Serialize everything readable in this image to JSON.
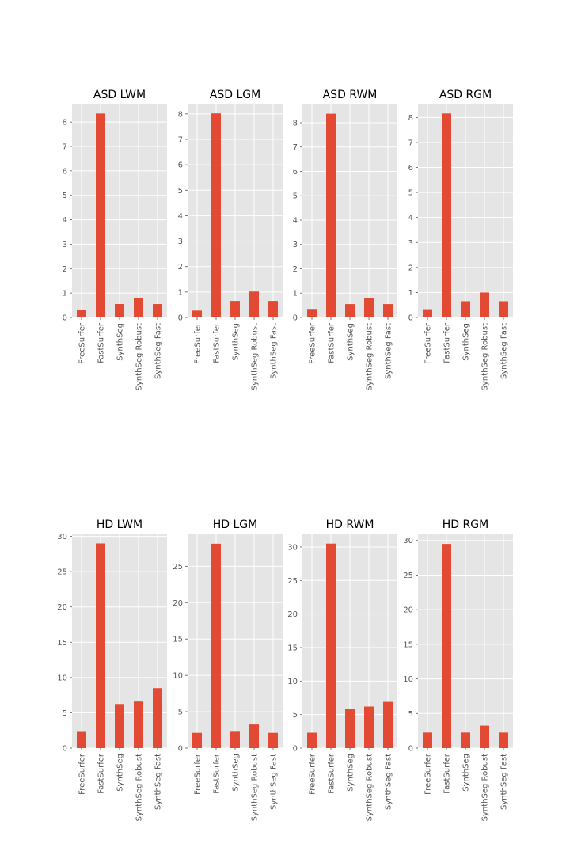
{
  "colors": {
    "bar": "#E24A33",
    "panel_bg": "#E5E5E5",
    "grid": "#FFFFFF",
    "tick_text": "#555555"
  },
  "chart_data": [
    {
      "type": "bar",
      "title": "ASD LWM",
      "xlabel": "",
      "ylabel": "",
      "categories": [
        "FreeSurfer",
        "FastSurfer",
        "SynthSeg",
        "SynthSeg Robust",
        "SynthSeg Fast"
      ],
      "values": [
        0.3,
        8.35,
        0.55,
        0.78,
        0.55
      ],
      "ylim": [
        0,
        8.75
      ],
      "yticks": [
        "0",
        "1",
        "2",
        "3",
        "4",
        "5",
        "6",
        "7",
        "8"
      ],
      "grid": true
    },
    {
      "type": "bar",
      "title": "ASD LGM",
      "xlabel": "",
      "ylabel": "",
      "categories": [
        "FreeSurfer",
        "FastSurfer",
        "SynthSeg",
        "SynthSeg Robust",
        "SynthSeg Fast"
      ],
      "values": [
        0.27,
        8.02,
        0.65,
        1.02,
        0.65
      ],
      "ylim": [
        0,
        8.4
      ],
      "yticks": [
        "0",
        "1",
        "2",
        "3",
        "4",
        "5",
        "6",
        "7",
        "8"
      ],
      "grid": true
    },
    {
      "type": "bar",
      "title": "ASD RWM",
      "xlabel": "",
      "ylabel": "",
      "categories": [
        "FreeSurfer",
        "FastSurfer",
        "SynthSeg",
        "SynthSeg Robust",
        "SynthSeg Fast"
      ],
      "values": [
        0.35,
        8.37,
        0.55,
        0.78,
        0.55
      ],
      "ylim": [
        0,
        8.78
      ],
      "yticks": [
        "0",
        "1",
        "2",
        "3",
        "4",
        "5",
        "6",
        "7",
        "8"
      ],
      "grid": true
    },
    {
      "type": "bar",
      "title": "ASD RGM",
      "xlabel": "",
      "ylabel": "",
      "categories": [
        "FreeSurfer",
        "FastSurfer",
        "SynthSeg",
        "SynthSeg Robust",
        "SynthSeg Fast"
      ],
      "values": [
        0.33,
        8.16,
        0.65,
        1.0,
        0.65
      ],
      "ylim": [
        0,
        8.55
      ],
      "yticks": [
        "0",
        "1",
        "2",
        "3",
        "4",
        "5",
        "6",
        "7",
        "8"
      ],
      "grid": true
    },
    {
      "type": "bar",
      "title": "HD LWM",
      "xlabel": "",
      "ylabel": "",
      "categories": [
        "FreeSurfer",
        "FastSurfer",
        "SynthSeg",
        "SynthSeg Robust",
        "SynthSeg Fast"
      ],
      "values": [
        2.3,
        29.0,
        6.25,
        6.6,
        8.5
      ],
      "ylim": [
        0,
        30.4
      ],
      "yticks": [
        "0",
        "5",
        "10",
        "15",
        "20",
        "25",
        "30"
      ],
      "grid": true
    },
    {
      "type": "bar",
      "title": "HD LGM",
      "xlabel": "",
      "ylabel": "",
      "categories": [
        "FreeSurfer",
        "FastSurfer",
        "SynthSeg",
        "SynthSeg Robust",
        "SynthSeg Fast"
      ],
      "values": [
        2.1,
        28.1,
        2.25,
        3.25,
        2.1
      ],
      "ylim": [
        0,
        29.5
      ],
      "yticks": [
        "0",
        "5",
        "10",
        "15",
        "20",
        "25"
      ],
      "grid": true
    },
    {
      "type": "bar",
      "title": "HD RWM",
      "xlabel": "",
      "ylabel": "",
      "categories": [
        "FreeSurfer",
        "FastSurfer",
        "SynthSeg",
        "SynthSeg Robust",
        "SynthSeg Fast"
      ],
      "values": [
        2.3,
        30.5,
        5.9,
        6.2,
        6.9
      ],
      "ylim": [
        0,
        32.0
      ],
      "yticks": [
        "0",
        "5",
        "10",
        "15",
        "20",
        "25",
        "30"
      ],
      "grid": true
    },
    {
      "type": "bar",
      "title": "HD RGM",
      "xlabel": "",
      "ylabel": "",
      "categories": [
        "FreeSurfer",
        "FastSurfer",
        "SynthSeg",
        "SynthSeg Robust",
        "SynthSeg Fast"
      ],
      "values": [
        2.25,
        29.5,
        2.25,
        3.25,
        2.25
      ],
      "ylim": [
        0,
        31.0
      ],
      "yticks": [
        "0",
        "5",
        "10",
        "15",
        "20",
        "25",
        "30"
      ],
      "grid": true
    }
  ]
}
